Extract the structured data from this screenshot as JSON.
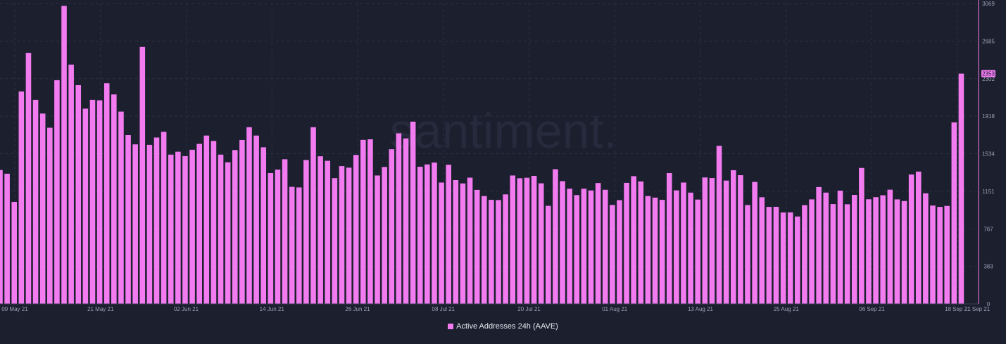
{
  "colors": {
    "background": "#1c1f2e",
    "bar": "#f27bf0",
    "grid": "#2c3145",
    "axis": "#9aa0b4",
    "badge_text": "#1c1f2e"
  },
  "watermark": "santiment.",
  "legend": {
    "label": "Active Addresses 24h (AAVE)",
    "placement": "bottom-center"
  },
  "chart_data": {
    "type": "bar",
    "series": [
      {
        "name": "Active Addresses 24h (AAVE)"
      }
    ],
    "x_tick_labels": [
      "09 May 21",
      "21 May 21",
      "02 Jun 21",
      "14 Jun 21",
      "26 Jun 21",
      "08 Jul 21",
      "20 Jul 21",
      "01 Aug 21",
      "13 Aug 21",
      "25 Aug 21",
      "06 Sep 21",
      "18 Sep 21",
      "21 Sep 21"
    ],
    "y_tick_labels": [
      "0",
      "383",
      "767",
      "1151",
      "1534",
      "1918",
      "2302",
      "2685",
      "3069"
    ],
    "ylim": [
      0,
      3069
    ],
    "grid": true,
    "y_axis_position": "right",
    "last_value_label": "2353",
    "values": [
      1368,
      1330,
      1042,
      2170,
      2565,
      2085,
      1945,
      1800,
      2285,
      3045,
      2445,
      2235,
      1995,
      2085,
      2080,
      2255,
      2140,
      1965,
      1725,
      1630,
      2625,
      1625,
      1700,
      1758,
      1525,
      1555,
      1510,
      1575,
      1635,
      1720,
      1665,
      1525,
      1447,
      1572,
      1675,
      1805,
      1720,
      1600,
      1337,
      1372,
      1478,
      1196,
      1190,
      1470,
      1805,
      1508,
      1462,
      1285,
      1408,
      1392,
      1522,
      1676,
      1682,
      1312,
      1399,
      1580,
      1743,
      1691,
      1862,
      1401,
      1425,
      1444,
      1240,
      1422,
      1265,
      1231,
      1290,
      1165,
      1102,
      1063,
      1061,
      1119,
      1312,
      1284,
      1289,
      1308,
      1232,
      1002,
      1376,
      1254,
      1177,
      1112,
      1177,
      1159,
      1235,
      1166,
      1011,
      1060,
      1237,
      1305,
      1251,
      1102,
      1086,
      1063,
      1337,
      1160,
      1240,
      1137,
      1066,
      1292,
      1286,
      1615,
      1260,
      1366,
      1315,
      1010,
      1246,
      1090,
      991,
      992,
      934,
      935,
      893,
      1009,
      1068,
      1194,
      1137,
      1020,
      1157,
      1018,
      1114,
      1389,
      1069,
      1091,
      1110,
      1167,
      1068,
      1051,
      1322,
      1352,
      1130,
      1005,
      991,
      1001,
      1854,
      2353
    ]
  }
}
